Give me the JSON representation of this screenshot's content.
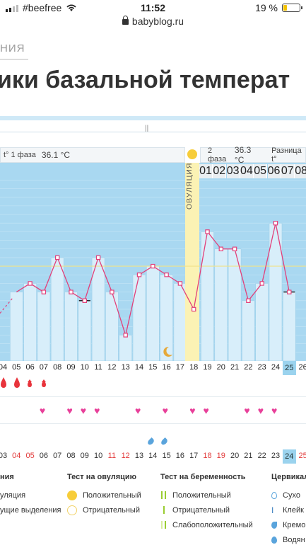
{
  "status": {
    "carrier": "#beefree",
    "time": "11:52",
    "battery": "19 %",
    "battery_level": 0.19
  },
  "url": "babyblog.ru",
  "breadcrumb": "НИЯ",
  "title": "ики базальной температ",
  "phase1": {
    "label": "t° 1 фаза",
    "value": "36.1 °C"
  },
  "phase2": {
    "label": "2 фаза",
    "value": "36.3 °C",
    "diff_label": "Разница t°"
  },
  "ovulation_label": "ОВУЛЯЦИЯ",
  "phase2_days": [
    "01",
    "02",
    "03",
    "04",
    "05",
    "06",
    "07",
    "08"
  ],
  "cycle_days": [
    "04",
    "05",
    "06",
    "07",
    "08",
    "09",
    "10",
    "11",
    "12",
    "13",
    "14",
    "15",
    "16",
    "17",
    "18",
    "19",
    "20",
    "21",
    "22",
    "23",
    "24",
    "25",
    "26"
  ],
  "cycle_days_highlight": "25",
  "date_days": [
    {
      "t": "03",
      "red": false
    },
    {
      "t": "04",
      "red": true
    },
    {
      "t": "05",
      "red": true
    },
    {
      "t": "06",
      "red": false
    },
    {
      "t": "07",
      "red": false
    },
    {
      "t": "08",
      "red": false
    },
    {
      "t": "09",
      "red": false
    },
    {
      "t": "10",
      "red": false
    },
    {
      "t": "11",
      "red": true
    },
    {
      "t": "12",
      "red": true
    },
    {
      "t": "13",
      "red": false
    },
    {
      "t": "14",
      "red": false
    },
    {
      "t": "15",
      "red": false
    },
    {
      "t": "16",
      "red": false
    },
    {
      "t": "17",
      "red": false
    },
    {
      "t": "18",
      "red": true
    },
    {
      "t": "19",
      "red": true
    },
    {
      "t": "20",
      "red": false
    },
    {
      "t": "21",
      "red": false
    },
    {
      "t": "22",
      "red": false
    },
    {
      "t": "23",
      "red": false
    },
    {
      "t": "24",
      "red": false
    },
    {
      "t": "25",
      "red": true
    }
  ],
  "date_days_highlight": "24",
  "chart_data": {
    "type": "line",
    "x": [
      "05",
      "06",
      "07",
      "08",
      "09",
      "10",
      "11",
      "12",
      "13",
      "14",
      "15",
      "16",
      "17",
      "18",
      "19",
      "20",
      "21",
      "22",
      "23",
      "24",
      "25"
    ],
    "values": [
      36.1,
      36.2,
      36.1,
      36.5,
      36.1,
      36.0,
      36.5,
      36.1,
      35.6,
      36.3,
      36.4,
      36.3,
      36.2,
      35.9,
      36.8,
      36.6,
      36.6,
      36.0,
      36.2,
      36.9,
      36.1
    ],
    "coverline": 36.4
  },
  "legend": {
    "col1": {
      "title": "ния",
      "items": [
        "уляция",
        "ущие выделения"
      ]
    },
    "ovulation_test": {
      "title": "Тест на овуляцию",
      "items": [
        "Положительный",
        "Отрицательный"
      ]
    },
    "pregnancy_test": {
      "title": "Тест на беременность",
      "items": [
        "Положительный",
        "Отрицательный",
        "Слабоположительный"
      ]
    },
    "cervical": {
      "title": "Цервикал",
      "items": [
        "Сухо",
        "Клейк",
        "Кремо",
        "Водян"
      ]
    }
  },
  "colors": {
    "chart_bg": "#a9d8f1",
    "ovulation": "#fbf2b4",
    "line": "#e2407a",
    "accent_blue": "#9bd3ee"
  }
}
